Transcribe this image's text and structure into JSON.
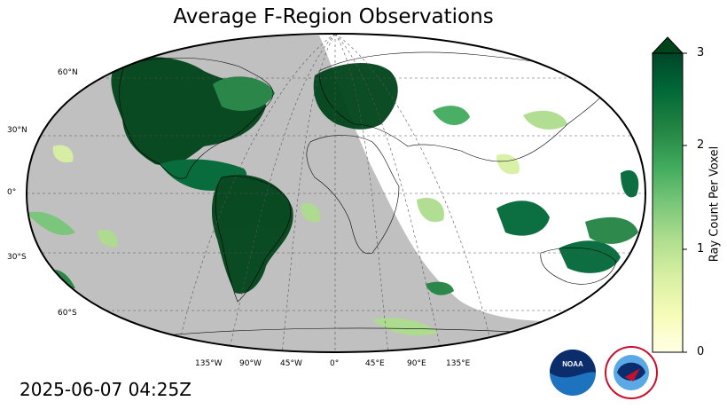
{
  "title": "Average F-Region Observations",
  "timestamp": "2025-06-07 04:25Z",
  "lat_labels": [
    "60°N",
    "30°N",
    "0°",
    "30°S",
    "60°S"
  ],
  "lon_labels": [
    "135°W",
    "90°W",
    "45°W",
    "0°",
    "45°E",
    "90°E",
    "135°E"
  ],
  "colorbar": {
    "label": "Ray Count Per Voxel",
    "ticks": [
      "0",
      "1",
      "2",
      "3"
    ],
    "min": 0,
    "max": 3,
    "extend": "max",
    "colors": [
      "#ffffe5",
      "#f7fcb9",
      "#d9f0a3",
      "#addd8e",
      "#78c679",
      "#41ab5d",
      "#238443",
      "#006837",
      "#004529"
    ]
  },
  "colors": {
    "night_shade": "#c0c0c0",
    "high_density": "#00441b"
  },
  "logos": {
    "noaa_text": "NOAA",
    "nws_text": "NATIONAL WEATHER SERVICE"
  }
}
